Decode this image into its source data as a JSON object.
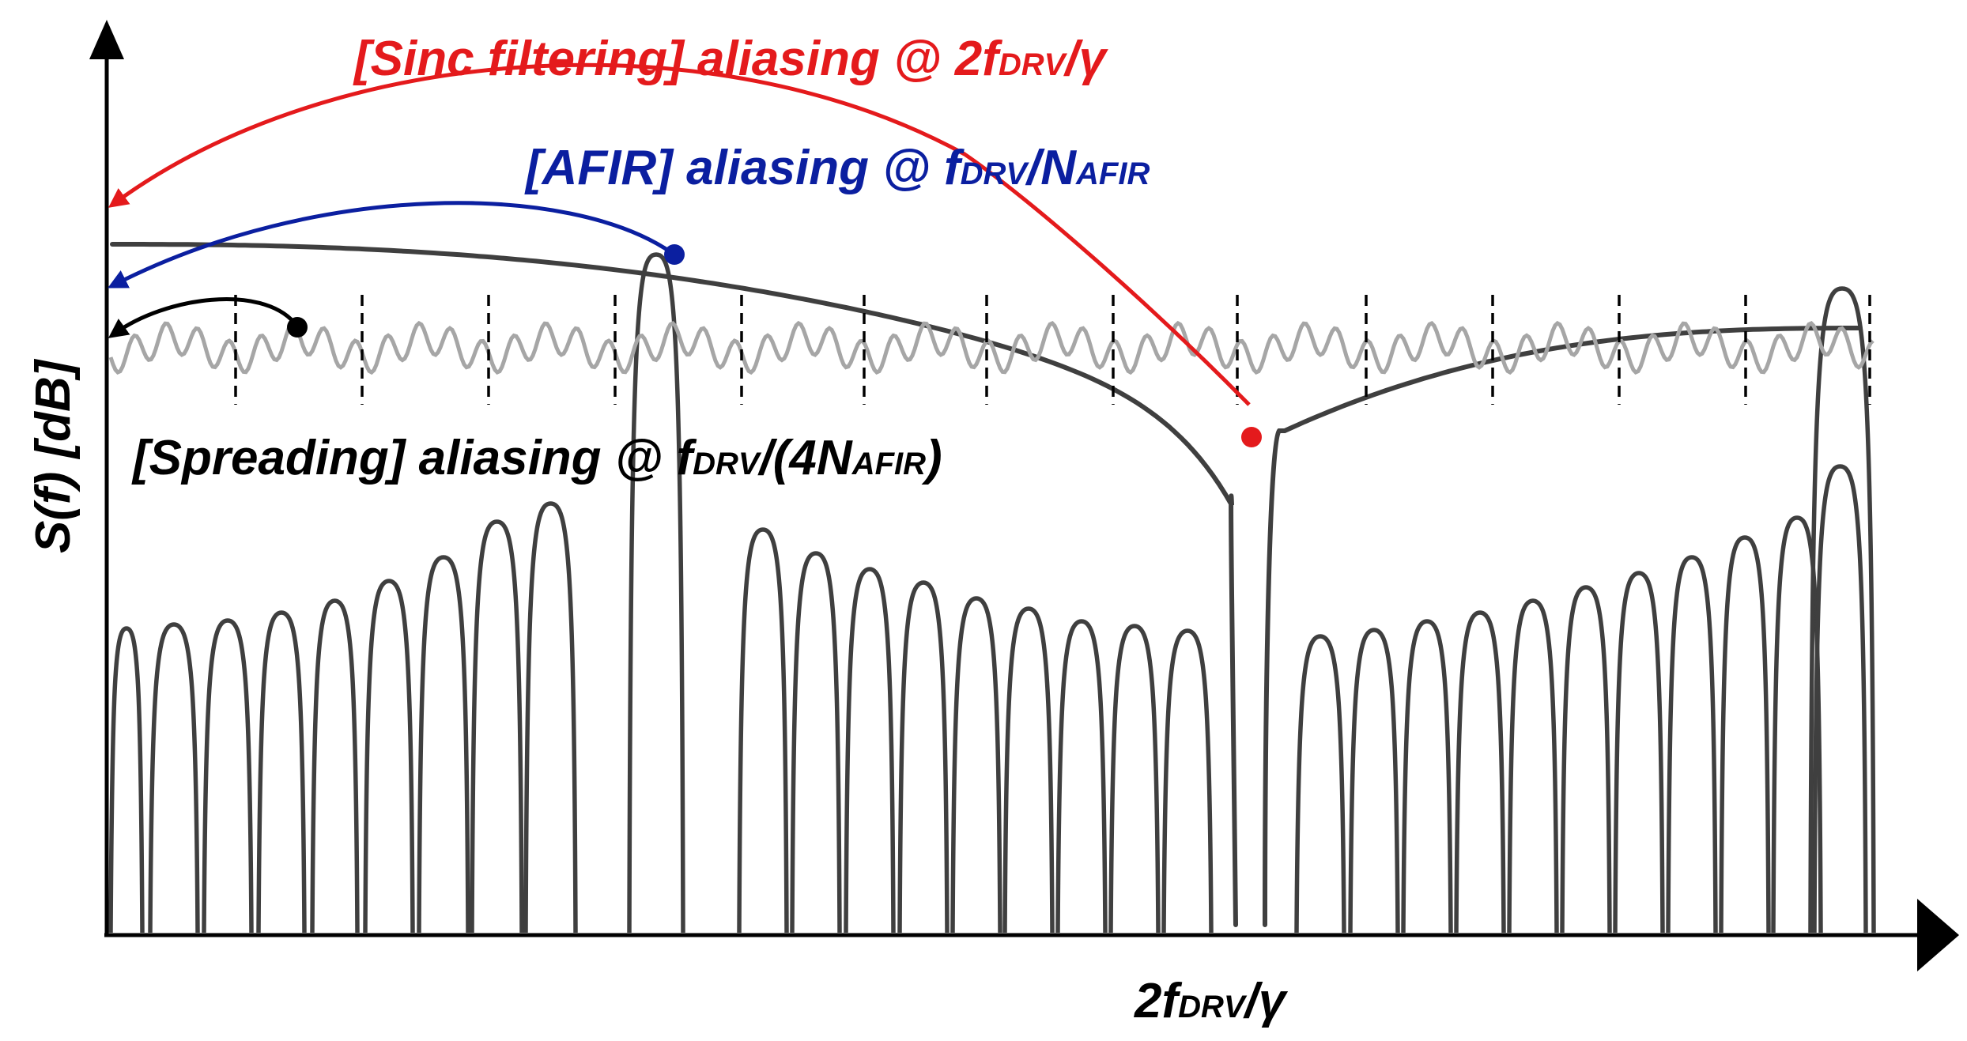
{
  "colors": {
    "sinc": "#e41a1c",
    "afir": "#0b1fa0",
    "spread": "#000000",
    "curve": "#3f3f3f",
    "ripple": "#a6a6a6",
    "axis": "#000000"
  },
  "annotations": {
    "sinc": {
      "prefix": "[Sinc filtering] aliasing @ 2f",
      "sub": "DRV",
      "suffix": "/γ"
    },
    "afir": {
      "prefix": "[AFIR] aliasing @ f",
      "sub": "DRV",
      "mid": "/N",
      "sub2": "AFIR"
    },
    "spread": {
      "prefix": "[Spreading] aliasing @ f",
      "sub": "DRV",
      "mid": "/(4N",
      "sub2": "AFIR",
      "suffix": ")"
    }
  },
  "axes": {
    "y_label": "S(f)  [dB]",
    "x_tick": {
      "prefix": "2f",
      "sub": "DRV",
      "suffix": "/γ"
    }
  }
}
